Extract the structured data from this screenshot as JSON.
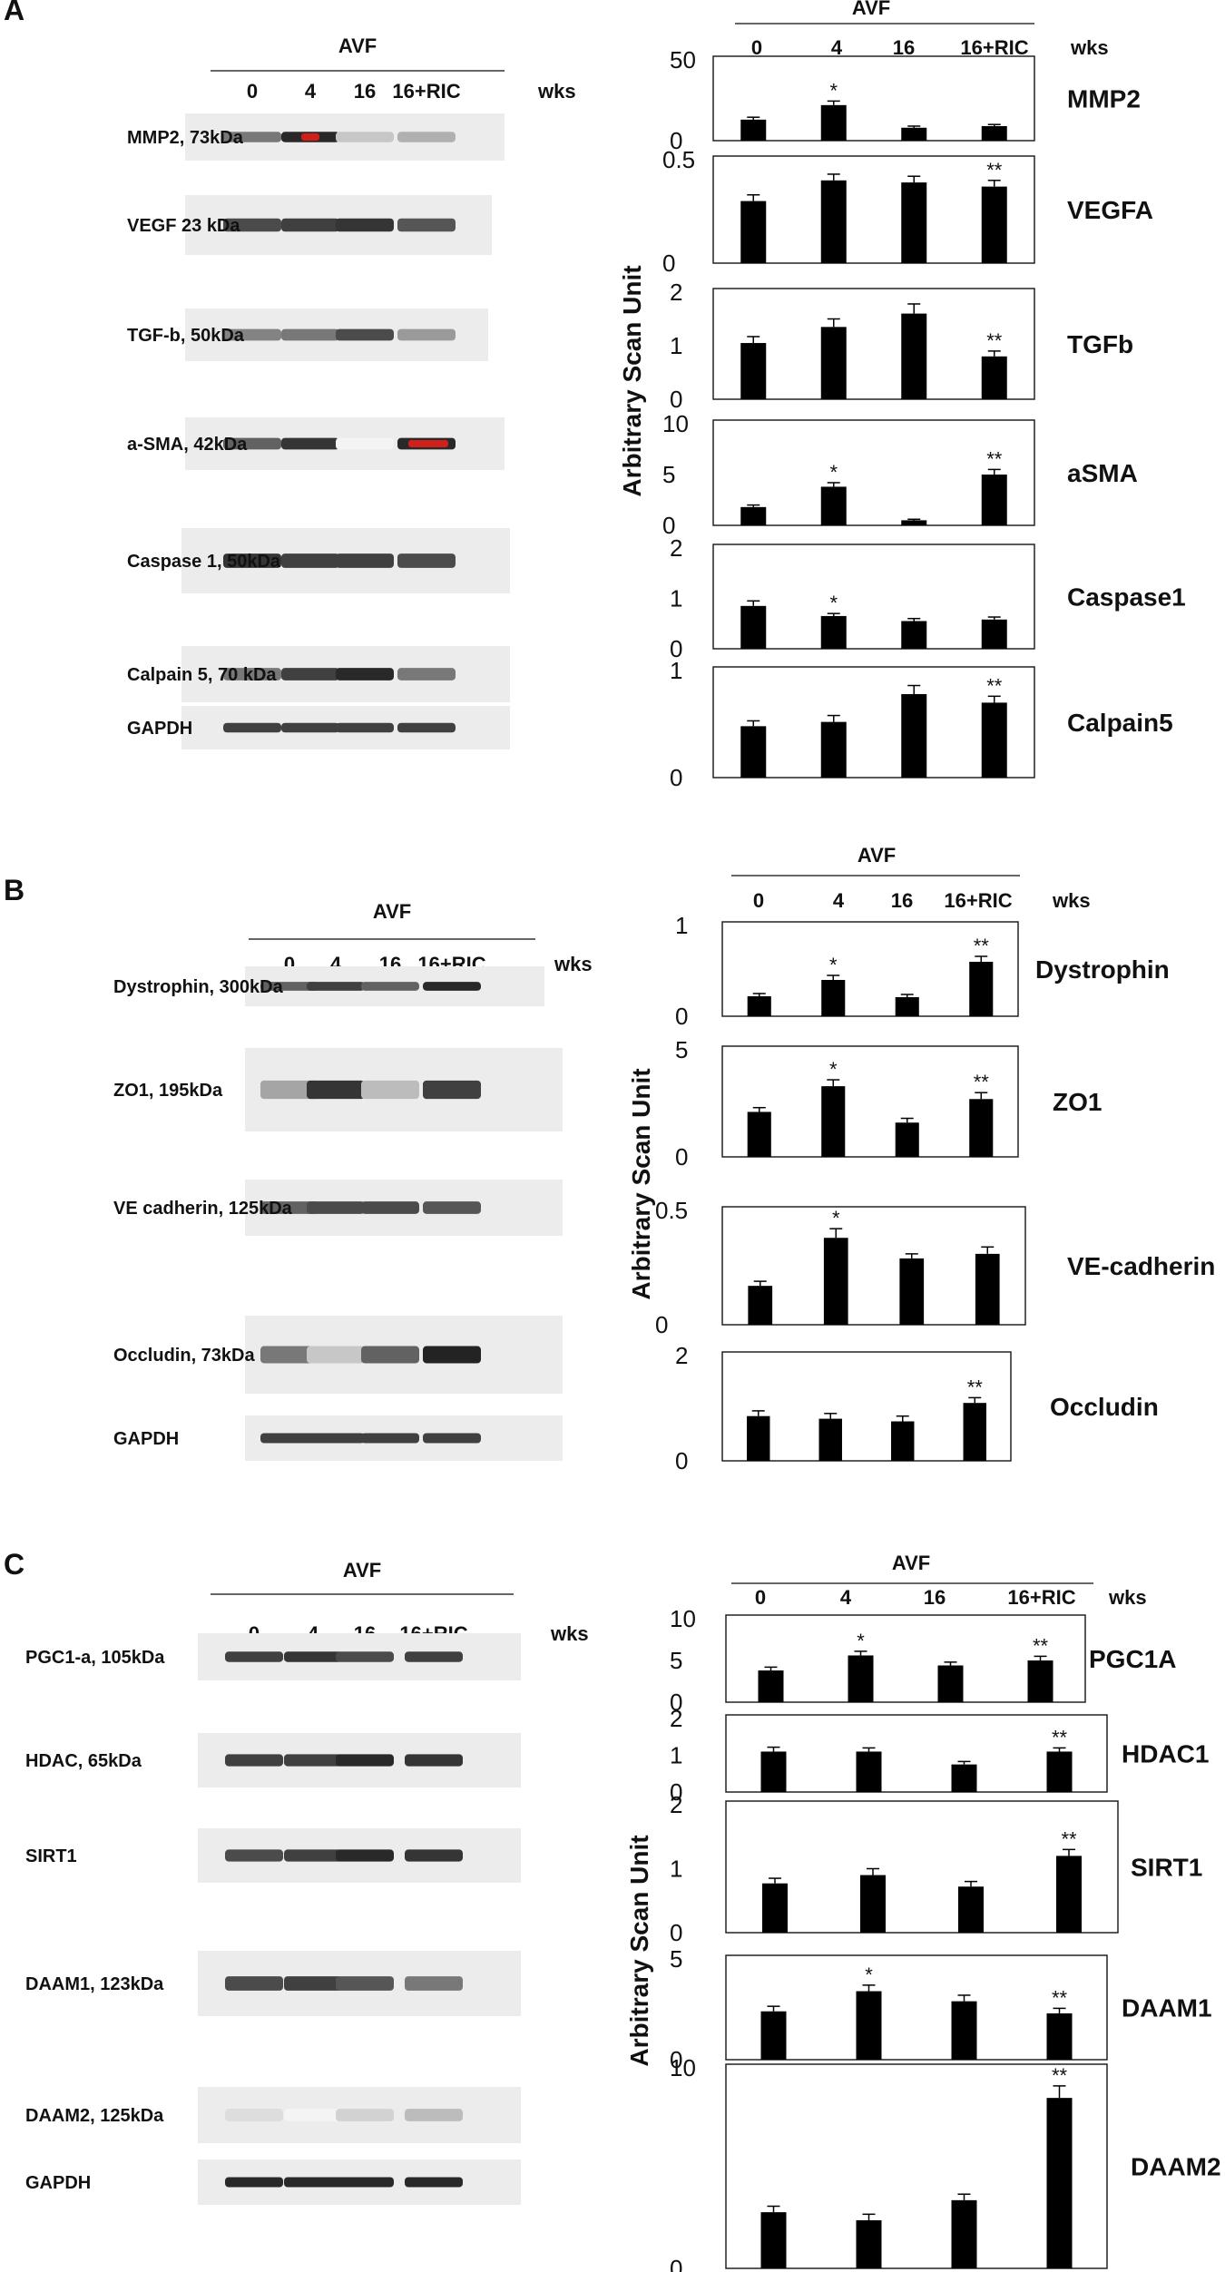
{
  "common": {
    "lane_labels": [
      "0",
      "4",
      "16",
      "16+RIC"
    ],
    "group_label": "AVF",
    "unit_label": "wks",
    "y_axis_label": "Arbitrary Scan Unit"
  },
  "panels": [
    {
      "letter": "A",
      "blots": [
        "MMP2, 73kDa",
        "VEGF 23 kDa",
        "TGF-b, 50kDa",
        "a-SMA, 42kDa",
        "Caspase 1, 50kDa",
        "Calpain 5, 70 kDa",
        "GAPDH"
      ]
    },
    {
      "letter": "B",
      "blots": [
        "Dystrophin, 300kDa",
        "ZO1, 195kDa",
        "VE cadherin, 125kDa",
        "Occludin, 73kDa",
        "GAPDH"
      ]
    },
    {
      "letter": "C",
      "blots": [
        "PGC1-a, 105kDa",
        "HDAC, 65kDa",
        "SIRT1",
        "DAAM1, 123kDa",
        "DAAM2, 125kDa",
        "GAPDH"
      ]
    }
  ],
  "chart_data": [
    {
      "type": "bar",
      "panel": "A",
      "name": "MMP2",
      "categories": [
        "0",
        "4",
        "16",
        "16+RIC"
      ],
      "values": [
        13,
        22,
        8,
        9
      ],
      "errors": [
        1.5,
        2.5,
        1,
        1
      ],
      "significance": [
        "",
        "*",
        "",
        ""
      ],
      "ylim": [
        0,
        50
      ],
      "yticks": [
        "0",
        "50"
      ]
    },
    {
      "type": "bar",
      "panel": "A",
      "name": "VEGFA",
      "categories": [
        "0",
        "4",
        "16",
        "16+RIC"
      ],
      "values": [
        0.3,
        0.4,
        0.39,
        0.37
      ],
      "errors": [
        0.03,
        0.03,
        0.03,
        0.03
      ],
      "significance": [
        "",
        "",
        "",
        "**"
      ],
      "ylim": [
        0,
        0.5
      ],
      "yticks": [
        "0",
        "0.5"
      ]
    },
    {
      "type": "bar",
      "panel": "A",
      "name": "TGFb",
      "categories": [
        "0",
        "4",
        "16",
        "16+RIC"
      ],
      "values": [
        1.05,
        1.35,
        1.6,
        0.8
      ],
      "errors": [
        0.12,
        0.15,
        0.18,
        0.1
      ],
      "significance": [
        "",
        "",
        "",
        "**"
      ],
      "ylim": [
        0,
        2
      ],
      "yticks": [
        "0",
        "1",
        "2"
      ]
    },
    {
      "type": "bar",
      "panel": "A",
      "name": "aSMA",
      "categories": [
        "0",
        "4",
        "16",
        "16+RIC"
      ],
      "values": [
        1.8,
        3.8,
        0.5,
        5
      ],
      "errors": [
        0.2,
        0.4,
        0.1,
        0.5
      ],
      "significance": [
        "",
        "*",
        "",
        "**"
      ],
      "ylim": [
        0,
        10
      ],
      "yticks": [
        "0",
        "5",
        "10"
      ]
    },
    {
      "type": "bar",
      "panel": "A",
      "name": "Caspase1",
      "categories": [
        "0",
        "4",
        "16",
        "16+RIC"
      ],
      "values": [
        0.85,
        0.65,
        0.55,
        0.58
      ],
      "errors": [
        0.1,
        0.05,
        0.05,
        0.05
      ],
      "significance": [
        "",
        "*",
        "",
        ""
      ],
      "ylim": [
        0,
        2
      ],
      "yticks": [
        "0",
        "1",
        "2"
      ]
    },
    {
      "type": "bar",
      "panel": "A",
      "name": "Calpain5",
      "categories": [
        "0",
        "4",
        "16",
        "16+RIC"
      ],
      "values": [
        0.48,
        0.52,
        0.78,
        0.7
      ],
      "errors": [
        0.05,
        0.06,
        0.08,
        0.06
      ],
      "significance": [
        "",
        "",
        "",
        "**"
      ],
      "ylim": [
        0,
        1
      ],
      "yticks": [
        "0",
        "1"
      ]
    },
    {
      "type": "bar",
      "panel": "B",
      "name": "Dystrophin",
      "categories": [
        "0",
        "4",
        "16",
        "16+RIC"
      ],
      "values": [
        0.22,
        0.4,
        0.21,
        0.6
      ],
      "errors": [
        0.03,
        0.05,
        0.03,
        0.06
      ],
      "significance": [
        "",
        "*",
        "",
        "**"
      ],
      "ylim": [
        0,
        1
      ],
      "yticks": [
        "0",
        "1"
      ]
    },
    {
      "type": "bar",
      "panel": "B",
      "name": "ZO1",
      "categories": [
        "0",
        "4",
        "16",
        "16+RIC"
      ],
      "values": [
        2.1,
        3.3,
        1.6,
        2.7
      ],
      "errors": [
        0.2,
        0.3,
        0.2,
        0.3
      ],
      "significance": [
        "",
        "*",
        "",
        "**"
      ],
      "ylim": [
        0,
        5
      ],
      "yticks": [
        "0",
        "5"
      ]
    },
    {
      "type": "bar",
      "panel": "B",
      "name": "VE-cadherin",
      "categories": [
        "0",
        "4",
        "16",
        "16+RIC"
      ],
      "values": [
        0.17,
        0.38,
        0.29,
        0.31
      ],
      "errors": [
        0.02,
        0.04,
        0.02,
        0.03
      ],
      "significance": [
        "",
        "*",
        "",
        ""
      ],
      "ylim": [
        0,
        0.5
      ],
      "yticks": [
        "0",
        "0.5"
      ]
    },
    {
      "type": "bar",
      "panel": "B",
      "name": "Occludin",
      "categories": [
        "0",
        "4",
        "16",
        "16+RIC"
      ],
      "values": [
        0.85,
        0.8,
        0.75,
        1.1
      ],
      "errors": [
        0.1,
        0.1,
        0.1,
        0.1
      ],
      "significance": [
        "",
        "",
        "",
        "**"
      ],
      "ylim": [
        0,
        2
      ],
      "yticks": [
        "0",
        "2"
      ]
    },
    {
      "type": "bar",
      "panel": "C",
      "name": "PGC1A",
      "categories": [
        "0",
        "4",
        "16",
        "16+RIC"
      ],
      "values": [
        3.8,
        5.6,
        4.4,
        5
      ],
      "errors": [
        0.4,
        0.5,
        0.4,
        0.5
      ],
      "significance": [
        "",
        "*",
        "",
        "**"
      ],
      "ylim": [
        0,
        10
      ],
      "yticks": [
        "0",
        "5",
        "10"
      ]
    },
    {
      "type": "bar",
      "panel": "C",
      "name": "HDAC1",
      "categories": [
        "0",
        "4",
        "16",
        "16+RIC"
      ],
      "values": [
        1.1,
        1.1,
        0.75,
        1.1
      ],
      "errors": [
        0.12,
        0.1,
        0.08,
        0.1
      ],
      "significance": [
        "",
        "",
        "",
        "**"
      ],
      "ylim": [
        0,
        2
      ],
      "yticks": [
        "0",
        "1",
        "2"
      ]
    },
    {
      "type": "bar",
      "panel": "C",
      "name": "SIRT1",
      "categories": [
        "0",
        "4",
        "16",
        "16+RIC"
      ],
      "values": [
        0.77,
        0.9,
        0.72,
        1.2
      ],
      "errors": [
        0.08,
        0.1,
        0.08,
        0.1
      ],
      "significance": [
        "",
        "",
        "",
        "**"
      ],
      "ylim": [
        0,
        2
      ],
      "yticks": [
        "0",
        "1",
        "2"
      ]
    },
    {
      "type": "bar",
      "panel": "C",
      "name": "DAAM1",
      "categories": [
        "0",
        "4",
        "16",
        "16+RIC"
      ],
      "values": [
        2.4,
        3.4,
        2.9,
        2.3
      ],
      "errors": [
        0.25,
        0.3,
        0.3,
        0.25
      ],
      "significance": [
        "",
        "*",
        "",
        "**"
      ],
      "ylim": [
        0,
        5
      ],
      "yticks": [
        "0",
        "5"
      ]
    },
    {
      "type": "bar",
      "panel": "C",
      "name": "DAAM2",
      "categories": [
        "0",
        "4",
        "16",
        "16+RIC"
      ],
      "values": [
        2.8,
        2.4,
        3.4,
        8.5
      ],
      "errors": [
        0.3,
        0.3,
        0.3,
        0.6
      ],
      "significance": [
        "",
        "",
        "",
        "**"
      ],
      "ylim": [
        0,
        10
      ],
      "yticks": [
        "0",
        "10"
      ]
    }
  ]
}
